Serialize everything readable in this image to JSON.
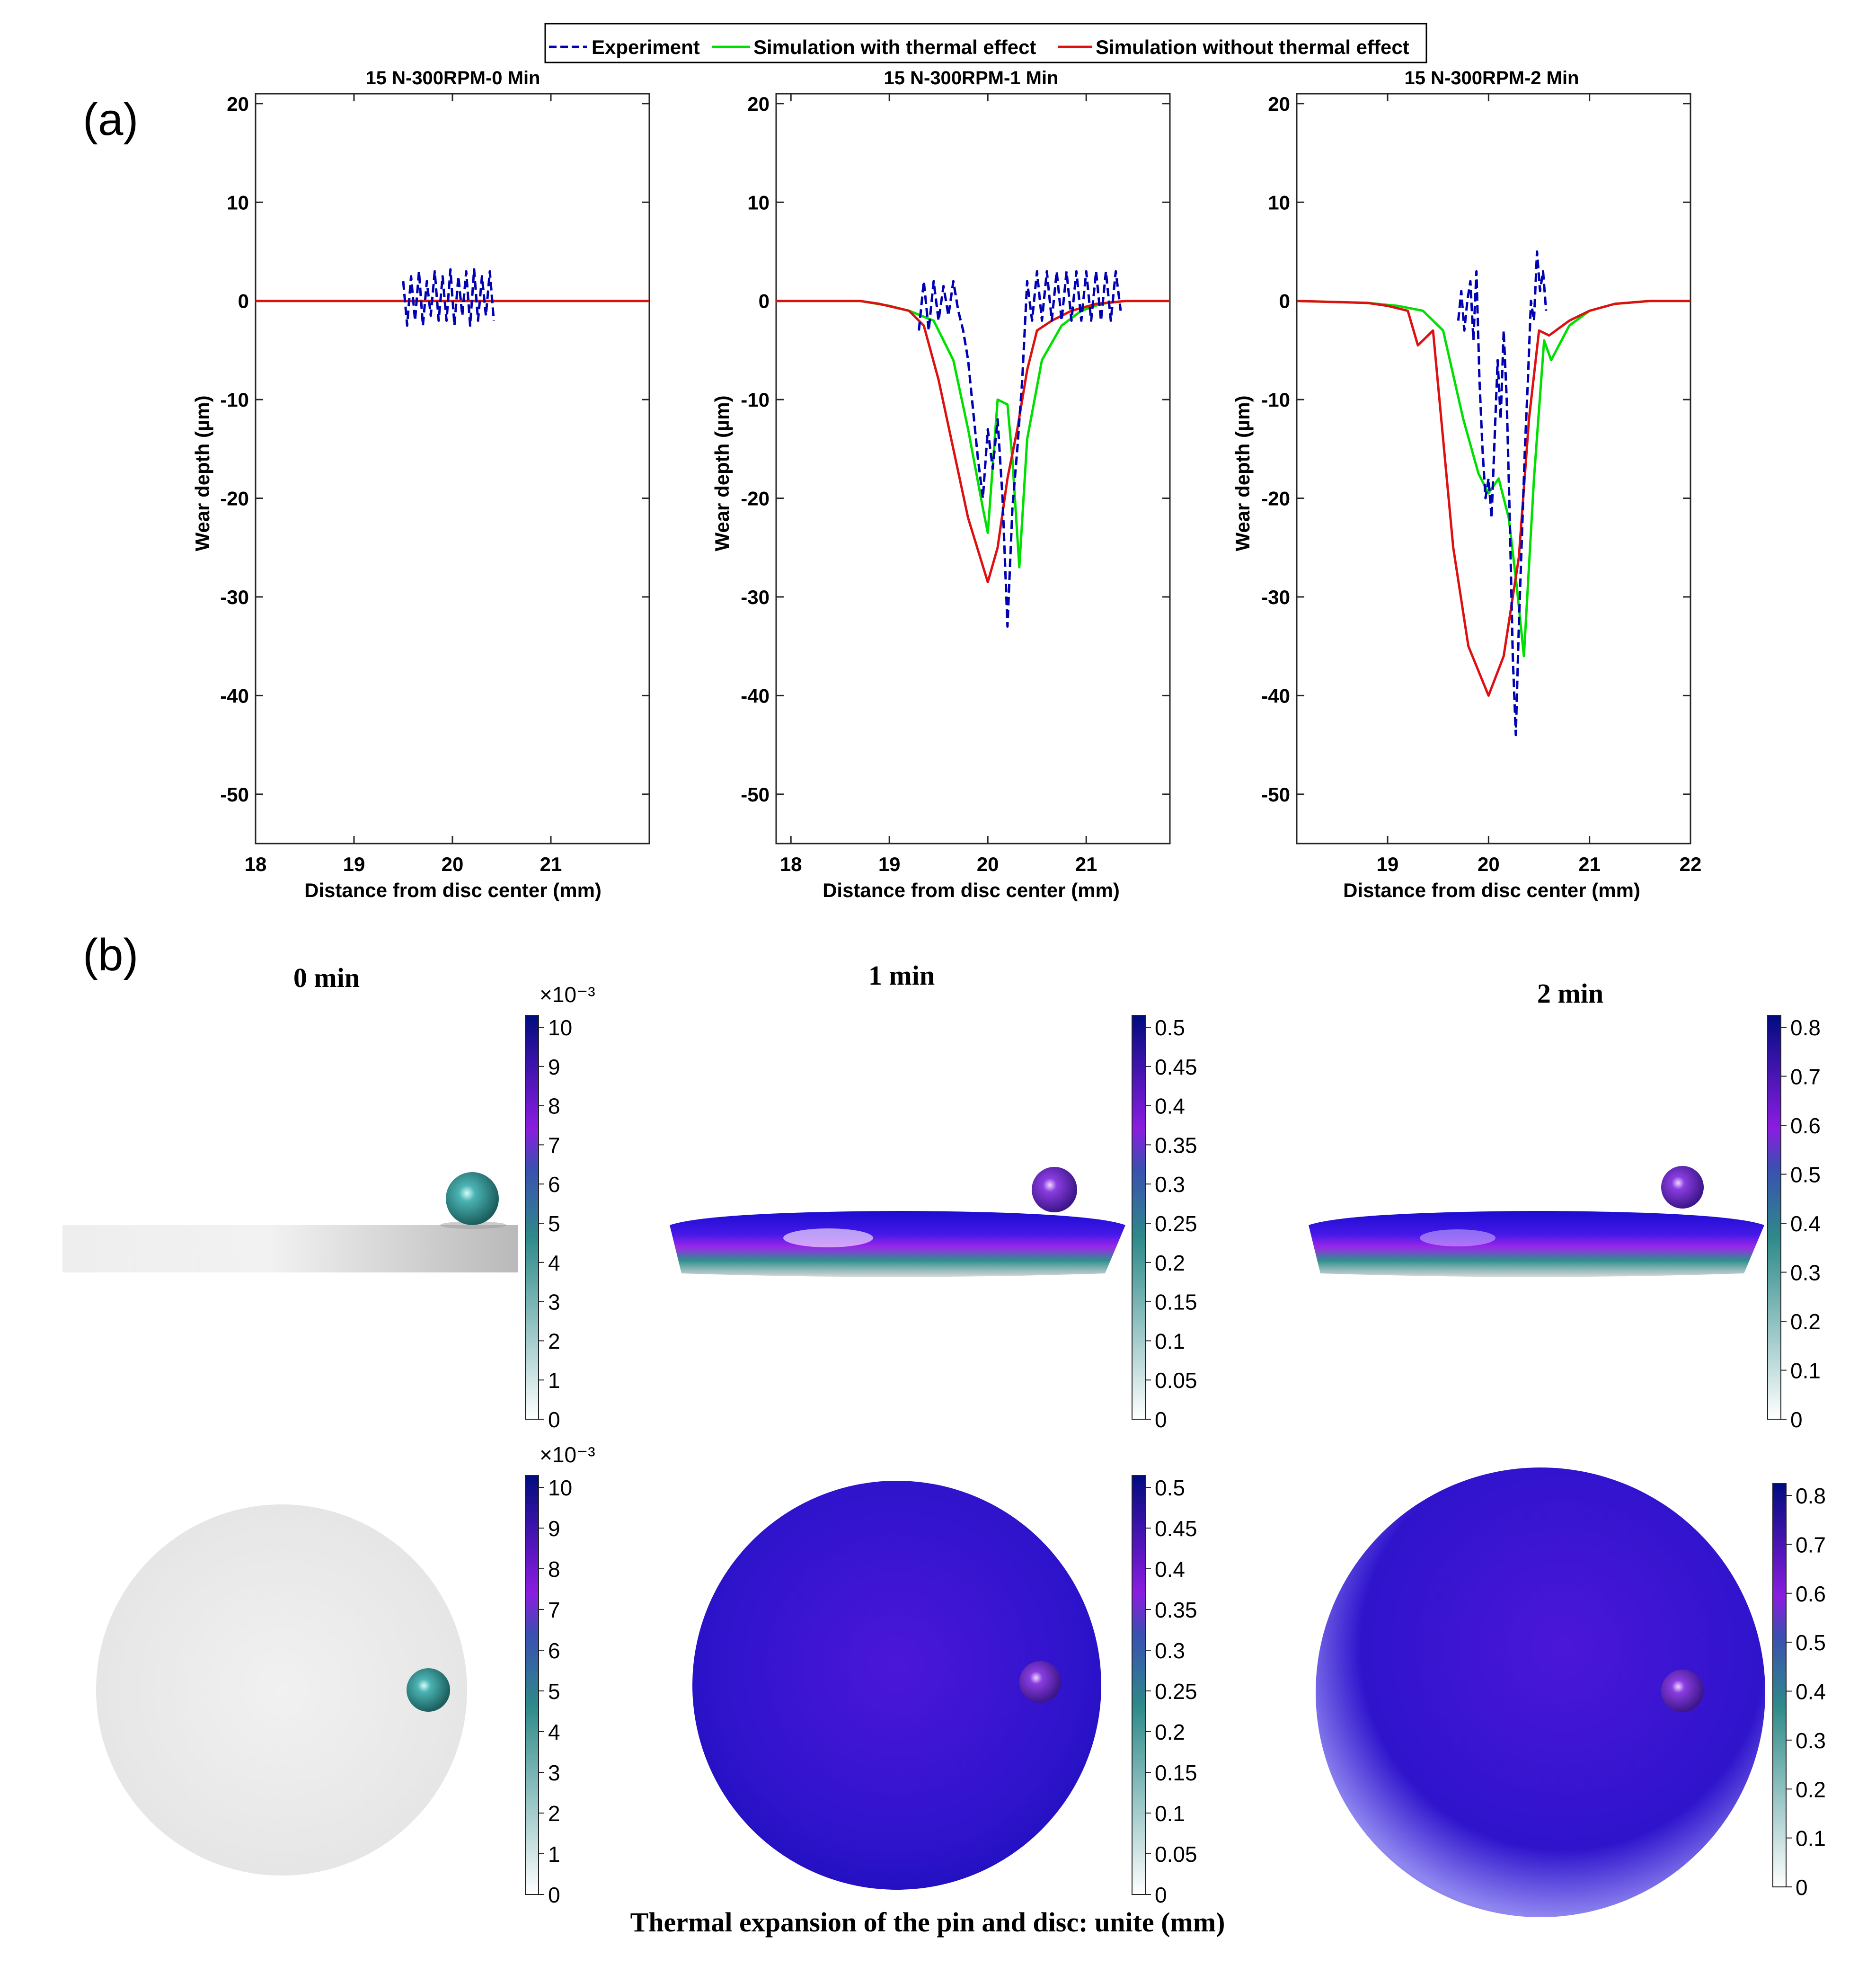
{
  "panel_labels": {
    "a": "(a)",
    "b": "(b)"
  },
  "legend": [
    {
      "label": "Experiment",
      "color": "#0000b3",
      "style": "dashed"
    },
    {
      "label": "Simulation with thermal effect",
      "color": "#00e000",
      "style": "solid"
    },
    {
      "label": "Simulation without thermal effect",
      "color": "#dd1111",
      "style": "solid"
    }
  ],
  "chart_data": [
    {
      "type": "line",
      "title": "15 N-300RPM-0 Min",
      "xlabel": "Distance from disc center (mm)",
      "ylabel": "Wear depth (µm)",
      "xlim": [
        18,
        22
      ],
      "ylim": [
        -55,
        21
      ],
      "xticks": [
        18,
        19,
        20,
        21
      ],
      "yticks": [
        20,
        10,
        0,
        -10,
        -20,
        -30,
        -40,
        -50
      ],
      "series": [
        {
          "name": "Simulation with thermal effect",
          "x": [
            18,
            22
          ],
          "y": [
            0,
            0
          ]
        },
        {
          "name": "Simulation without thermal effect",
          "x": [
            18,
            22
          ],
          "y": [
            0,
            0
          ]
        },
        {
          "name": "Experiment",
          "x": [
            19.5,
            19.54,
            19.58,
            19.62,
            19.66,
            19.7,
            19.74,
            19.78,
            19.82,
            19.86,
            19.9,
            19.94,
            19.98,
            20.02,
            20.06,
            20.1,
            20.14,
            20.18,
            20.22,
            20.26,
            20.3,
            20.34,
            20.38,
            20.42
          ],
          "y": [
            2,
            -2.5,
            2.5,
            -2,
            3,
            -2.5,
            2,
            -1.5,
            3,
            -2,
            2.5,
            -2,
            3.2,
            -2.5,
            2.5,
            -1.5,
            3,
            -2.5,
            3.2,
            -2,
            2.5,
            -1.5,
            3,
            -2
          ]
        }
      ]
    },
    {
      "type": "line",
      "title": "15 N-300RPM-1 Min",
      "xlabel": "Distance from disc center (mm)",
      "ylabel": "Wear depth (µm)",
      "xlim": [
        17.85,
        21.85
      ],
      "ylim": [
        -55,
        21
      ],
      "xticks": [
        18,
        19,
        20,
        21
      ],
      "yticks": [
        20,
        10,
        0,
        -10,
        -20,
        -30,
        -40,
        -50
      ],
      "series": [
        {
          "name": "Simulation with thermal effect",
          "x": [
            17.85,
            18.7,
            19.0,
            19.2,
            19.45,
            19.65,
            19.8,
            19.95,
            20.0,
            20.1,
            20.2,
            20.25,
            20.32,
            20.4,
            20.55,
            20.75,
            20.95,
            21.15,
            21.4,
            21.85
          ],
          "y": [
            0,
            0,
            -0.5,
            -1,
            -2,
            -6,
            -13,
            -21,
            -23.5,
            -10,
            -10.5,
            -16,
            -27,
            -14,
            -6,
            -2.5,
            -1,
            -0.3,
            0,
            0
          ]
        },
        {
          "name": "Simulation without thermal effect",
          "x": [
            17.85,
            18.7,
            18.9,
            19.2,
            19.35,
            19.5,
            19.65,
            19.8,
            20.0,
            20.1,
            20.2,
            20.3,
            20.4,
            20.5,
            20.65,
            20.85,
            21.1,
            21.4,
            21.85
          ],
          "y": [
            0,
            0,
            -0.3,
            -1,
            -2.5,
            -8,
            -15,
            -22,
            -28.5,
            -25,
            -18,
            -13,
            -7,
            -3,
            -2,
            -1,
            -0.3,
            0,
            0
          ]
        },
        {
          "name": "Experiment",
          "x": [
            19.3,
            19.35,
            19.4,
            19.45,
            19.5,
            19.55,
            19.6,
            19.65,
            19.7,
            19.75,
            19.8,
            19.85,
            19.9,
            19.95,
            20.0,
            20.05,
            20.1,
            20.15,
            20.2,
            20.25,
            20.3,
            20.35,
            20.4,
            20.45,
            20.5,
            20.55,
            20.6,
            20.65,
            20.7,
            20.75,
            20.8,
            20.85,
            20.9,
            20.95,
            21.0,
            21.05,
            21.1,
            21.15,
            21.2,
            21.25,
            21.3,
            21.35
          ],
          "y": [
            -3,
            2,
            -3,
            2,
            -2,
            1.5,
            -1.5,
            2,
            -1,
            -3,
            -6,
            -11,
            -16,
            -20,
            -13,
            -17,
            -12,
            -20,
            -33,
            -21,
            -15,
            -8,
            2,
            -2,
            3,
            -2,
            3,
            -2,
            3,
            -2,
            3,
            -2,
            3,
            -2,
            3,
            -2,
            3,
            -2,
            3,
            -2,
            3,
            -1
          ]
        }
      ]
    },
    {
      "type": "line",
      "title": "15 N-300RPM-2 Min",
      "xlabel": "Distance from disc center (mm)",
      "ylabel": "Wear depth (µm)",
      "xlim": [
        18.1,
        22.0
      ],
      "ylim": [
        -55,
        21
      ],
      "xticks": [
        19,
        20,
        21,
        22
      ],
      "yticks": [
        20,
        10,
        0,
        -10,
        -20,
        -30,
        -40,
        -50
      ],
      "series": [
        {
          "name": "Simulation with thermal effect",
          "x": [
            18.1,
            18.8,
            19.1,
            19.35,
            19.55,
            19.75,
            19.9,
            20.0,
            20.1,
            20.2,
            20.28,
            20.35,
            20.45,
            20.55,
            20.62,
            20.8,
            21.0,
            21.25,
            21.6,
            22.0
          ],
          "y": [
            0,
            -0.2,
            -0.5,
            -1,
            -3,
            -12,
            -17.5,
            -19.5,
            -18,
            -22,
            -29,
            -36,
            -18,
            -4,
            -6,
            -2.5,
            -1,
            -0.3,
            0,
            0
          ]
        },
        {
          "name": "Simulation without thermal effect",
          "x": [
            18.1,
            18.8,
            19.0,
            19.2,
            19.3,
            19.45,
            19.55,
            19.65,
            19.8,
            20.0,
            20.15,
            20.3,
            20.4,
            20.5,
            20.6,
            20.8,
            21.0,
            21.25,
            21.6,
            22.0
          ],
          "y": [
            0,
            -0.2,
            -0.5,
            -1,
            -4.5,
            -3,
            -14,
            -25,
            -35,
            -40,
            -36,
            -26,
            -12,
            -3,
            -3.5,
            -2,
            -1,
            -0.3,
            0,
            0
          ]
        },
        {
          "name": "Experiment",
          "x": [
            19.7,
            19.73,
            19.76,
            19.79,
            19.82,
            19.85,
            19.88,
            19.91,
            19.94,
            19.97,
            20.0,
            20.03,
            20.06,
            20.09,
            20.12,
            20.15,
            20.18,
            20.21,
            20.24,
            20.27,
            20.3,
            20.33,
            20.36,
            20.39,
            20.42,
            20.45,
            20.48,
            20.51,
            20.54,
            20.57
          ],
          "y": [
            -2,
            1,
            -3,
            0,
            2,
            -4,
            3,
            -8,
            -15,
            -20,
            -18,
            -22,
            -14,
            -6,
            -12,
            -3,
            -10,
            -22,
            -36,
            -44,
            -33,
            -24,
            -15,
            -8,
            0,
            -2,
            5,
            1,
            3,
            -1
          ]
        }
      ]
    }
  ],
  "sim": {
    "title": "Thermal expansion of the pin and disc: unite (mm)",
    "columns": [
      {
        "time": "0 min",
        "multiplier": "×10⁻³",
        "ticks": [
          "10",
          "9",
          "8",
          "7",
          "6",
          "5",
          "4",
          "3",
          "2",
          "1",
          "0"
        ],
        "disc_color": "#d2d2d2",
        "ball_color": "#2f8f8f"
      },
      {
        "time": "1 min",
        "multiplier": "",
        "ticks": [
          "0.5",
          "0.45",
          "0.4",
          "0.35",
          "0.3",
          "0.25",
          "0.2",
          "0.15",
          "0.1",
          "0.05",
          "0"
        ],
        "disc_color": "#2c17cf",
        "ball_color": "#6a25c8"
      },
      {
        "time": "2 min",
        "multiplier": "",
        "ticks": [
          "0.8",
          "0.7",
          "0.6",
          "0.5",
          "0.4",
          "0.3",
          "0.2",
          "0.1",
          "0"
        ],
        "disc_color": "#2c17cf",
        "ball_color": "#6a25c8"
      }
    ]
  }
}
